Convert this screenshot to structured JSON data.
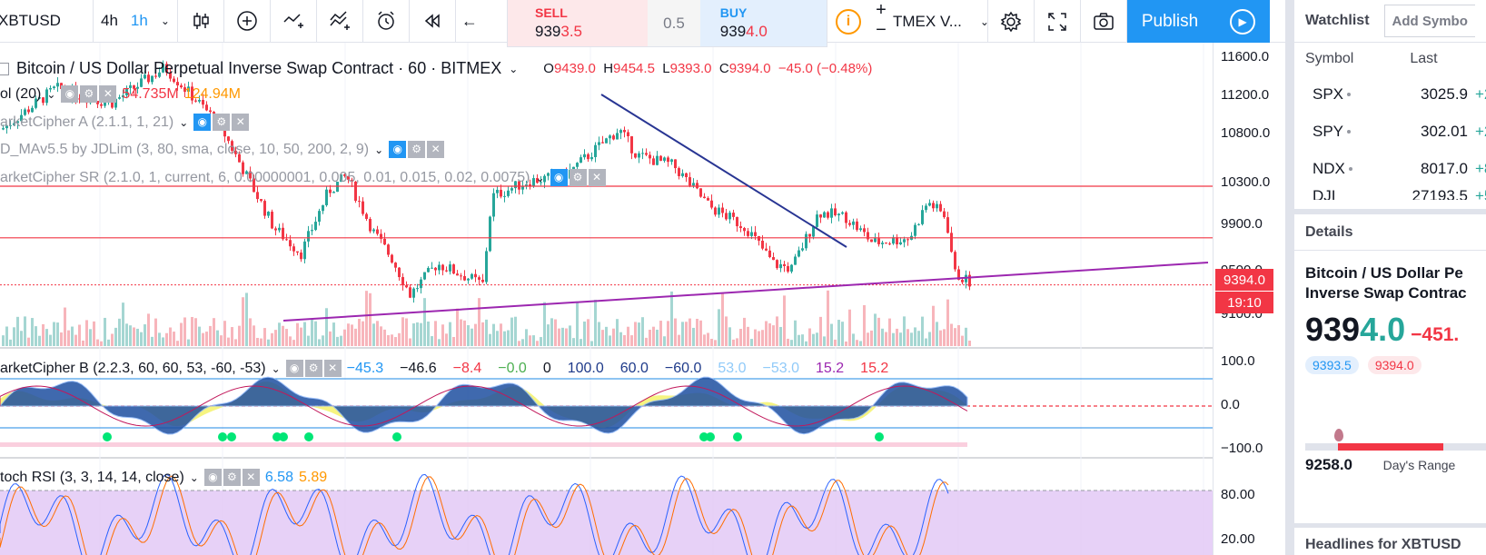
{
  "toolbar": {
    "symbol": "XBTUSD",
    "intervals": [
      "4h",
      "1h"
    ],
    "active_interval": "1h",
    "sell_label": "SELL",
    "sell_price_a": "939",
    "sell_price_b": "3.5",
    "spread": "0.5",
    "buy_label": "BUY",
    "buy_price_a": "939",
    "buy_price_b": "4.0",
    "plus": "+",
    "minus": "−",
    "exchange": "TMEX V...",
    "publish_label": "Publish",
    "icons": [
      "candles-icon",
      "add-indicator-icon",
      "compare-icon",
      "indicators-icon",
      "alert-icon",
      "replay-icon",
      "undo-icon",
      "settings-icon",
      "fullscreen-icon",
      "snapshot-icon",
      "play-icon"
    ]
  },
  "chart": {
    "title": "Bitcoin / US Dollar Perpetual Inverse Swap Contract · 60 · BITMEX",
    "ohlc": {
      "o_label": "O",
      "o": "9439.0",
      "h_label": "H",
      "h": "9454.5",
      "l_label": "L",
      "l": "9393.0",
      "c_label": "C",
      "c": "9394.0",
      "change": "−45.0 (−0.48%)"
    },
    "indicators": [
      {
        "label": "ol (20)",
        "values": [
          "54.735M",
          "124.94M"
        ]
      },
      {
        "label": "arketCipher A (2.1.1, 1, 21)"
      },
      {
        "label": "D_MAv5.5 by JDLim (3, 80, sma, close, 10, 50, 200, 2, 9)"
      },
      {
        "label": "arketCipher SR (2.1.0, 1, current, 6, 0.00000001, 0.005, 0.01, 0.015, 0.02, 0.0075)"
      }
    ],
    "cipher_b": {
      "label": "arketCipher B (2.2.3, 60, 60, 53, -60, -53)",
      "values": [
        "−45.3",
        "−46.6",
        "−8.4",
        "−0.0",
        "0",
        "100.0",
        "60.0",
        "−60.0",
        "53.0",
        "−53.0",
        "15.2",
        "15.2"
      ]
    },
    "stoch": {
      "label": "toch RSI (3, 3, 14, 14, close)",
      "k": "6.58",
      "d": "5.89"
    },
    "price_axis": [
      "11600.0",
      "11200.0",
      "10800.0",
      "10300.0",
      "9900.0",
      "9500.0",
      "9100.0"
    ],
    "osc_axis": [
      "100.0",
      "0.0",
      "−100.0"
    ],
    "stoch_axis": [
      "80.00",
      "20.00"
    ],
    "last_price": "9394.0",
    "countdown": "19:10"
  },
  "watchlist": {
    "title": "Watchlist",
    "add_placeholder": "Add Symbo",
    "col_symbol": "Symbol",
    "col_last": "Last",
    "rows": [
      {
        "symbol": "SPX",
        "last": "3025.9",
        "chg": "+2"
      },
      {
        "symbol": "SPY",
        "last": "302.01",
        "chg": "+2"
      },
      {
        "symbol": "NDX",
        "last": "8017.0",
        "chg": "+8"
      },
      {
        "symbol": "DJI",
        "last": "27193.5",
        "chg": "+5"
      }
    ]
  },
  "details": {
    "title": "Details",
    "name_line1": "Bitcoin / US Dollar Pe",
    "name_line2": "Inverse Swap Contrac",
    "price_a": "939",
    "price_b": "4.0",
    "change": "−451.",
    "bid": "9393.5",
    "ask": "9394.0",
    "range_low": "9258.0",
    "range_label": "Day's Range"
  },
  "headlines": {
    "title": "Headlines for XBTUSD"
  },
  "colors": {
    "up": "#26a69a",
    "down": "#f23645",
    "accent": "#2196f3",
    "trend": "#283593",
    "support": "#9c27b0"
  }
}
